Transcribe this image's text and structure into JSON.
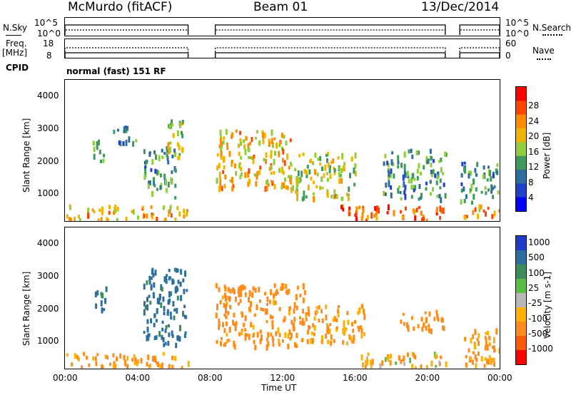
{
  "header": {
    "station": "McMurdo (fitACF)",
    "beam": "Beam 01",
    "date": "13/Dec/2014"
  },
  "top_panels": {
    "nsky_label": "N.Sky",
    "nsky_ticks": [
      "10^5",
      "10^0"
    ],
    "nsearch_label": "N.Search",
    "freq_label_1": "Freq.",
    "freq_label_2": "[MHz]",
    "freq_ticks": [
      "18",
      "8"
    ],
    "nave_label": "Nave",
    "nave_ticks": [
      "60",
      "0"
    ],
    "cpid_label": "CPID",
    "mode_text": "normal (fast) 151 RF"
  },
  "colors": {
    "power_scale": [
      "#0000ff",
      "#2040c8",
      "#2e6e9e",
      "#3d9a5a",
      "#8fce3a",
      "#f0b400",
      "#ff8c00",
      "#ff4500",
      "#ff0000"
    ],
    "velocity_scale": [
      "#1e3cc8",
      "#2e6e9e",
      "#3d8a5a",
      "#58c040",
      "#b8b8b8",
      "#ffb000",
      "#ff8c1a",
      "#ff5a00",
      "#ff0000"
    ]
  },
  "chart_data": [
    {
      "type": "heatmap",
      "name": "Power",
      "ylabel": "Slant Range [km]",
      "y_ticks": [
        "4000",
        "3000",
        "2000",
        "1000"
      ],
      "ylim": [
        180,
        4500
      ],
      "x_ticks": [
        "00:00",
        "04:00",
        "08:00",
        "12:00",
        "16:00",
        "20:00",
        "00:00"
      ],
      "xlim": [
        0,
        24
      ],
      "colorbar_label": "Power [dB]",
      "colorbar_ticks": [
        "28",
        "24",
        "20",
        "16",
        "12",
        "8",
        "4"
      ],
      "colorbar_range": [
        0,
        30
      ],
      "data_gaps_hours": [
        [
          6.8,
          8.3
        ],
        [
          21.0,
          21.8
        ]
      ],
      "echo_regions": [
        {
          "t0": 0.0,
          "t1": 6.8,
          "r0": 250,
          "r1": 700,
          "value": 20
        },
        {
          "t0": 1.5,
          "t1": 2.3,
          "r0": 2000,
          "r1": 2700,
          "value": 12
        },
        {
          "t0": 2.6,
          "t1": 4.0,
          "r0": 2600,
          "r1": 3100,
          "value": 10
        },
        {
          "t0": 4.3,
          "t1": 6.1,
          "r0": 900,
          "r1": 2500,
          "value": 10
        },
        {
          "t0": 5.6,
          "t1": 6.7,
          "r0": 2100,
          "r1": 3300,
          "value": 16
        },
        {
          "t0": 8.3,
          "t1": 12.5,
          "r0": 1200,
          "r1": 3000,
          "value": 20
        },
        {
          "t0": 12.5,
          "t1": 16.0,
          "r0": 900,
          "r1": 2300,
          "value": 16
        },
        {
          "t0": 15.2,
          "t1": 16.2,
          "r0": 250,
          "r1": 700,
          "value": 28
        },
        {
          "t0": 16.0,
          "t1": 21.0,
          "r0": 250,
          "r1": 700,
          "value": 24
        },
        {
          "t0": 17.5,
          "t1": 21.0,
          "r0": 900,
          "r1": 2400,
          "value": 10
        },
        {
          "t0": 21.8,
          "t1": 24.0,
          "r0": 300,
          "r1": 700,
          "value": 22
        },
        {
          "t0": 21.8,
          "t1": 24.0,
          "r0": 800,
          "r1": 2000,
          "value": 10
        }
      ]
    },
    {
      "type": "heatmap",
      "name": "Velocity",
      "ylabel": "Slant Range [km]",
      "y_ticks": [
        "4000",
        "3000",
        "2000",
        "1000"
      ],
      "ylim": [
        180,
        4500
      ],
      "x_ticks": [
        "00:00",
        "04:00",
        "08:00",
        "12:00",
        "16:00",
        "20:00",
        "00:00"
      ],
      "xlim": [
        0,
        24
      ],
      "xlabel": "Time UT",
      "colorbar_label": "Velocity [m s-1]",
      "colorbar_ticks": [
        "1000",
        "500",
        "100",
        "25",
        "-25",
        "-100",
        "-500",
        "-1000"
      ],
      "data_gaps_hours": [
        [
          6.8,
          8.3
        ],
        [
          21.0,
          21.8
        ]
      ],
      "echo_regions": [
        {
          "t0": 0.0,
          "t1": 6.8,
          "r0": 250,
          "r1": 700,
          "value": -150
        },
        {
          "t0": 1.5,
          "t1": 2.3,
          "r0": 2000,
          "r1": 2700,
          "value": 150
        },
        {
          "t0": 4.3,
          "t1": 6.7,
          "r0": 900,
          "r1": 3300,
          "value": 200
        },
        {
          "t0": 8.3,
          "t1": 13.5,
          "r0": 900,
          "r1": 2800,
          "value": -200
        },
        {
          "t0": 13.5,
          "t1": 16.5,
          "r0": 1000,
          "r1": 2200,
          "value": -150
        },
        {
          "t0": 16.0,
          "t1": 21.0,
          "r0": 250,
          "r1": 700,
          "value": -100
        },
        {
          "t0": 18.5,
          "t1": 21.0,
          "r0": 1400,
          "r1": 2000,
          "value": -300
        },
        {
          "t0": 21.8,
          "t1": 24.0,
          "r0": 300,
          "r1": 1500,
          "value": -150
        }
      ]
    }
  ]
}
